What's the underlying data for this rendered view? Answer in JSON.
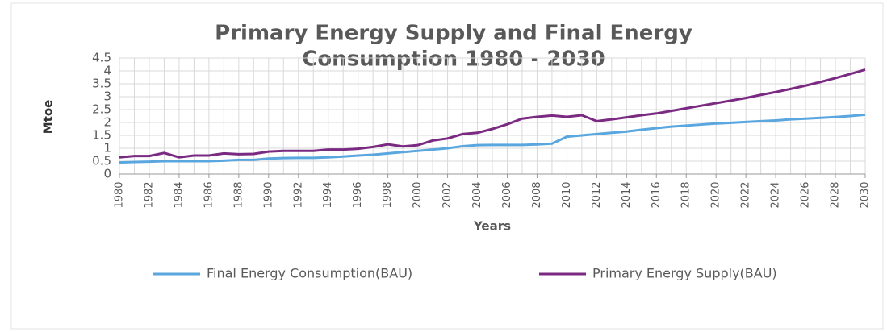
{
  "chart_data": {
    "type": "line",
    "title": [
      "Primary Energy Supply and Final Energy",
      "Consumption 1980 - 2030"
    ],
    "xlabel": "Years",
    "ylabel": "Mtoe",
    "x": [
      1980,
      1981,
      1982,
      1983,
      1984,
      1985,
      1986,
      1987,
      1988,
      1989,
      1990,
      1991,
      1992,
      1993,
      1994,
      1995,
      1996,
      1997,
      1998,
      1999,
      2000,
      2001,
      2002,
      2003,
      2004,
      2005,
      2006,
      2007,
      2008,
      2009,
      2010,
      2011,
      2012,
      2013,
      2014,
      2015,
      2016,
      2017,
      2018,
      2019,
      2020,
      2021,
      2022,
      2023,
      2024,
      2025,
      2026,
      2027,
      2028,
      2029,
      2030
    ],
    "xlim": [
      1980,
      2030
    ],
    "xticks": [
      1980,
      1982,
      1984,
      1986,
      1988,
      1990,
      1992,
      1994,
      1996,
      1998,
      2000,
      2002,
      2004,
      2006,
      2008,
      2010,
      2012,
      2014,
      2016,
      2018,
      2020,
      2022,
      2024,
      2026,
      2028,
      2030
    ],
    "ylim": [
      0,
      4.5
    ],
    "yticks": [
      0,
      0.5,
      1,
      1.5,
      2,
      2.5,
      3,
      3.5,
      4,
      4.5
    ],
    "grid": true,
    "legend": "bottom",
    "series": [
      {
        "name": "Final Energy Consumption(BAU)",
        "color": "#5aa6de",
        "values": [
          0.45,
          0.47,
          0.48,
          0.5,
          0.5,
          0.5,
          0.5,
          0.52,
          0.55,
          0.55,
          0.6,
          0.62,
          0.63,
          0.63,
          0.65,
          0.68,
          0.72,
          0.75,
          0.8,
          0.85,
          0.9,
          0.95,
          1.0,
          1.08,
          1.12,
          1.13,
          1.13,
          1.13,
          1.15,
          1.18,
          1.45,
          1.5,
          1.55,
          1.6,
          1.65,
          1.72,
          1.78,
          1.84,
          1.88,
          1.92,
          1.96,
          1.99,
          2.02,
          2.05,
          2.08,
          2.12,
          2.15,
          2.18,
          2.21,
          2.25,
          2.3
        ]
      },
      {
        "name": "Primary Energy Supply(BAU)",
        "color": "#7b2a82",
        "values": [
          0.65,
          0.7,
          0.7,
          0.82,
          0.65,
          0.72,
          0.72,
          0.8,
          0.77,
          0.78,
          0.87,
          0.9,
          0.9,
          0.9,
          0.95,
          0.95,
          0.98,
          1.05,
          1.15,
          1.07,
          1.12,
          1.3,
          1.38,
          1.55,
          1.6,
          1.75,
          1.93,
          2.15,
          2.22,
          2.27,
          2.22,
          2.28,
          2.05,
          2.12,
          2.2,
          2.28,
          2.35,
          2.45,
          2.55,
          2.65,
          2.75,
          2.85,
          2.95,
          3.07,
          3.18,
          3.3,
          3.43,
          3.57,
          3.72,
          3.88,
          4.05
        ]
      }
    ]
  }
}
